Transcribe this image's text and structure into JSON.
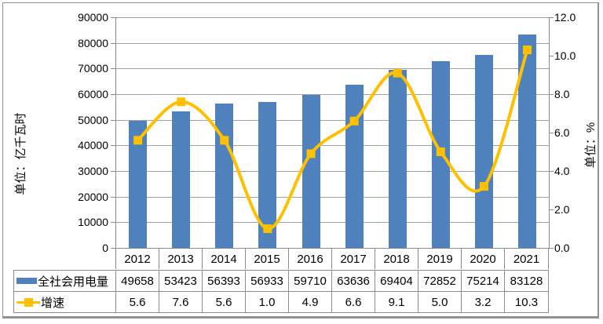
{
  "chart_data": {
    "type": "combo-bar-line",
    "categories": [
      "2012",
      "2013",
      "2014",
      "2015",
      "2016",
      "2017",
      "2018",
      "2019",
      "2020",
      "2021"
    ],
    "series": [
      {
        "name": "全社会用电量",
        "type": "bar",
        "axis": "left",
        "color": "#4F81BD",
        "values": [
          49658,
          53423,
          56393,
          56933,
          59710,
          63636,
          69404,
          72852,
          75214,
          83128
        ],
        "display_values": [
          "49658",
          "53423",
          "56393",
          "56933",
          "59710",
          "63636",
          "69404",
          "72852",
          "75214",
          "83128"
        ]
      },
      {
        "name": "增速",
        "type": "line",
        "axis": "right",
        "color": "#FFC000",
        "values": [
          5.6,
          7.6,
          5.6,
          1.0,
          4.9,
          6.6,
          9.1,
          5.0,
          3.2,
          10.3
        ],
        "display_values": [
          "5.6",
          "7.6",
          "5.6",
          "1.0",
          "4.9",
          "6.6",
          "9.1",
          "5.0",
          "3.2",
          "10.3"
        ]
      }
    ],
    "left_axis": {
      "title": "单位：亿千瓦时",
      "min": 0,
      "max": 90000,
      "step": 10000,
      "tick_labels": [
        "0",
        "10000",
        "20000",
        "30000",
        "40000",
        "50000",
        "60000",
        "70000",
        "80000",
        "90000"
      ]
    },
    "right_axis": {
      "title": "单位：%",
      "min": 0,
      "max": 12,
      "step": 2,
      "tick_labels": [
        "0.0",
        "2.0",
        "4.0",
        "6.0",
        "8.0",
        "10.0",
        "12.0"
      ]
    },
    "grid": true,
    "legend_position": "data-table-left"
  },
  "styles": {
    "bar_color": "#4F81BD",
    "line_color": "#FFC000",
    "gridline_color": "#A0A0A0",
    "axis_line_color": "#8C8C8C",
    "table_border_color": "#8C8C8C",
    "outer_border_color": "#919191",
    "text_color": "#000000",
    "background": "#FFFFFF"
  }
}
